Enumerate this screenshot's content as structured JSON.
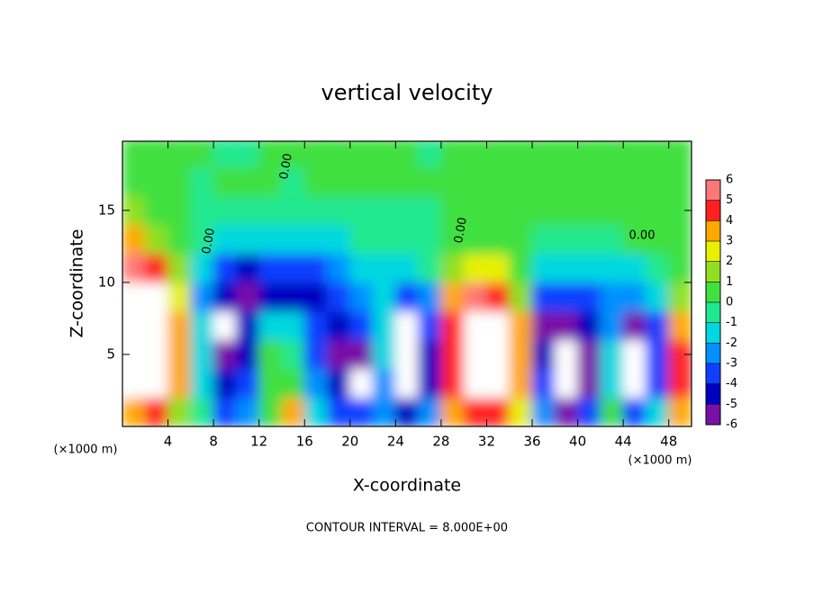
{
  "chart_data": {
    "type": "contour",
    "title": "vertical velocity",
    "x_label": "X-coordinate",
    "y_label": "Z-coordinate",
    "x_unit": "(×1000 m)",
    "footer": "CONTOUR INTERVAL = 8.000E+00",
    "contour_labels": [
      "0.00",
      "0.00",
      "0.00",
      "0.00"
    ],
    "xlim": [
      0,
      50
    ],
    "ylim": [
      0,
      19.8
    ],
    "xticks": [
      4,
      8,
      12,
      16,
      20,
      24,
      28,
      32,
      36,
      40,
      44,
      48
    ],
    "yticks": [
      5,
      10,
      15
    ],
    "x": [
      1,
      3,
      5,
      7,
      9,
      11,
      13,
      15,
      17,
      19,
      21,
      23,
      25,
      27,
      29,
      31,
      33,
      35,
      37,
      39,
      41,
      43,
      45,
      47,
      49
    ],
    "y": [
      1,
      3,
      5,
      7,
      9,
      11,
      13,
      15,
      17,
      19
    ],
    "z": [
      [
        4,
        5,
        2,
        0,
        -3,
        -2,
        1,
        4,
        -1,
        -3,
        -3,
        -2,
        -4,
        -2,
        4,
        5,
        5,
        3,
        -2,
        -6,
        -3,
        1,
        -3,
        -1,
        4
      ],
      [
        7,
        8,
        4,
        -1,
        -4,
        -3,
        1,
        1,
        -2,
        -4,
        -7,
        -2,
        -7,
        -4,
        5,
        8,
        8,
        4,
        -3,
        -7,
        -5,
        -1,
        -7,
        -3,
        5
      ],
      [
        8,
        8,
        4,
        -1,
        -5,
        -4,
        1,
        0,
        -3,
        -5,
        -6,
        -1,
        -8,
        -4,
        5,
        9,
        9,
        4,
        -4,
        -8,
        -5,
        -1,
        -7,
        -3,
        5
      ],
      [
        8,
        8,
        4,
        -1,
        -7,
        -4,
        -1,
        -1,
        -3,
        -4,
        -3,
        -1,
        -7,
        -3,
        5,
        9,
        8,
        4,
        -5,
        -6,
        -4,
        -2,
        -5,
        -3,
        4
      ],
      [
        7,
        7,
        3,
        -2,
        -4,
        -5,
        -4,
        -4,
        -4,
        -3,
        -2,
        -1,
        -3,
        -2,
        4,
        6,
        5,
        2,
        -3,
        -3,
        -3,
        -2,
        -2,
        -1,
        2
      ],
      [
        6,
        5,
        2,
        -1,
        -3,
        -4,
        -3,
        -3,
        -3,
        -2,
        -1,
        -1,
        -1,
        0,
        2,
        3,
        3,
        1,
        -1,
        -1,
        -1,
        -1,
        -1,
        0,
        1
      ],
      [
        4,
        2,
        1,
        0,
        -1,
        -1,
        -1,
        -1,
        -1,
        -1,
        0,
        0,
        0,
        0,
        1,
        1,
        1,
        0.5,
        0,
        0,
        0,
        0,
        0.5,
        0.5,
        1
      ],
      [
        2,
        1,
        0.5,
        0,
        0,
        0,
        0,
        -0.5,
        0,
        0,
        0,
        0,
        0,
        0,
        0.5,
        0.5,
        0.5,
        0.5,
        0.5,
        0.5,
        0.5,
        0.5,
        0.5,
        0.5,
        1
      ],
      [
        1,
        1,
        0.5,
        0,
        0.5,
        0.5,
        0.5,
        0,
        0.5,
        0.5,
        0.5,
        0.5,
        0.5,
        0.5,
        0.5,
        0.5,
        0.5,
        0.5,
        0.5,
        0.5,
        0.5,
        0.5,
        0.5,
        0.5,
        0.5
      ],
      [
        0.5,
        0.5,
        0.5,
        0.5,
        0,
        0,
        0.5,
        0.5,
        0.5,
        0.5,
        0.5,
        0.5,
        0.5,
        0,
        0.5,
        0.5,
        0.5,
        0.5,
        0.5,
        0.5,
        0.5,
        0.5,
        0.5,
        0.5,
        0.5
      ]
    ],
    "colorbar": {
      "levels": [
        -6,
        -5,
        -4,
        -3,
        -2,
        -1,
        0,
        1,
        2,
        3,
        4,
        5,
        6
      ],
      "colors": [
        "#7a10a8",
        "#0000c0",
        "#1040ff",
        "#0090ff",
        "#00d8e0",
        "#20e890",
        "#40e040",
        "#90e020",
        "#e8f000",
        "#ffa800",
        "#ff2020",
        "#ff7878"
      ],
      "over_color": "#ffffff"
    }
  }
}
